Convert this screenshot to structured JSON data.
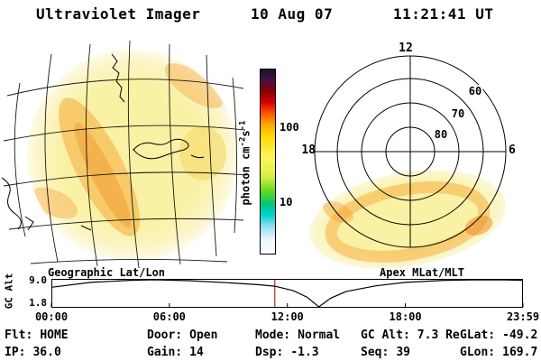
{
  "header": {
    "title": "Ultraviolet Imager",
    "date": "10 Aug 07",
    "time": "11:21:41 UT"
  },
  "colorbar": {
    "label_prefix": "photon cm",
    "sup1": "-2",
    "label_s": "s",
    "sup2": "-1",
    "tick_top": "100",
    "tick_bottom": "10",
    "stops": [
      "#14142d 0%",
      "#4a1040 6%",
      "#8a0000 12%",
      "#d80000 18%",
      "#ff5a00 24%",
      "#ffa800 30%",
      "#ffd800 36%",
      "#fff560 48%",
      "#d8f040 58%",
      "#66d81e 66%",
      "#00c878 73%",
      "#00d2d2 79%",
      "#a0e0f5 86%",
      "#e8f6ff 92%",
      "#ffffff 100%"
    ]
  },
  "geo_panel": {
    "title": "Geographic Lat/Lon",
    "disk_color": "#f9f1a4",
    "feature_color": "#f6a93b"
  },
  "apex_panel": {
    "title": "Apex MLat/MLT",
    "mlt_top": "12",
    "mlt_left": "18",
    "mlt_right": "6",
    "rings": [
      "80",
      "70",
      "60"
    ]
  },
  "strip": {
    "ylabel": "GC Alt",
    "ytick_top": "9.0",
    "ytick_bottom": "1.8",
    "ymax": 9.0,
    "ymin": 1.8,
    "hours_end": 23.98,
    "xticks": [
      "00:00",
      "06:00",
      "12:00",
      "18:00",
      "23:59"
    ],
    "tick_hours": [
      0,
      6,
      12,
      18,
      23.98
    ],
    "marker_hour": 11.36,
    "marker_color": "#a03030",
    "points": [
      [
        0,
        7.0
      ],
      [
        2,
        8.3
      ],
      [
        4,
        8.85
      ],
      [
        5.2,
        9.0
      ],
      [
        7,
        8.75
      ],
      [
        9,
        8.2
      ],
      [
        10.5,
        7.7
      ],
      [
        11.36,
        7.3
      ],
      [
        12.3,
        6.1
      ],
      [
        13,
        4.4
      ],
      [
        13.6,
        1.8
      ],
      [
        14.2,
        4.1
      ],
      [
        15,
        5.9
      ],
      [
        16.5,
        7.4
      ],
      [
        18,
        8.3
      ],
      [
        20,
        8.85
      ],
      [
        21.8,
        9.0
      ],
      [
        23,
        8.95
      ],
      [
        23.98,
        8.85
      ]
    ]
  },
  "status": {
    "row1": [
      {
        "label": "Flt:",
        "value": "HOME"
      },
      {
        "label": "Door:",
        "value": "Open"
      },
      {
        "label": "Mode:",
        "value": "Normal"
      },
      {
        "label": "GC Alt:",
        "value": "7.3 Re"
      },
      {
        "label": "GLat:",
        "value": "-49.2"
      }
    ],
    "row2": [
      {
        "label": "IP:",
        "value": "36.0"
      },
      {
        "label": "Gain:",
        "value": "14"
      },
      {
        "label": "Dsp:",
        "value": "-1.3"
      },
      {
        "label": "Seq:",
        "value": "39"
      },
      {
        "label": "GLon:",
        "value": "169.7"
      }
    ]
  }
}
